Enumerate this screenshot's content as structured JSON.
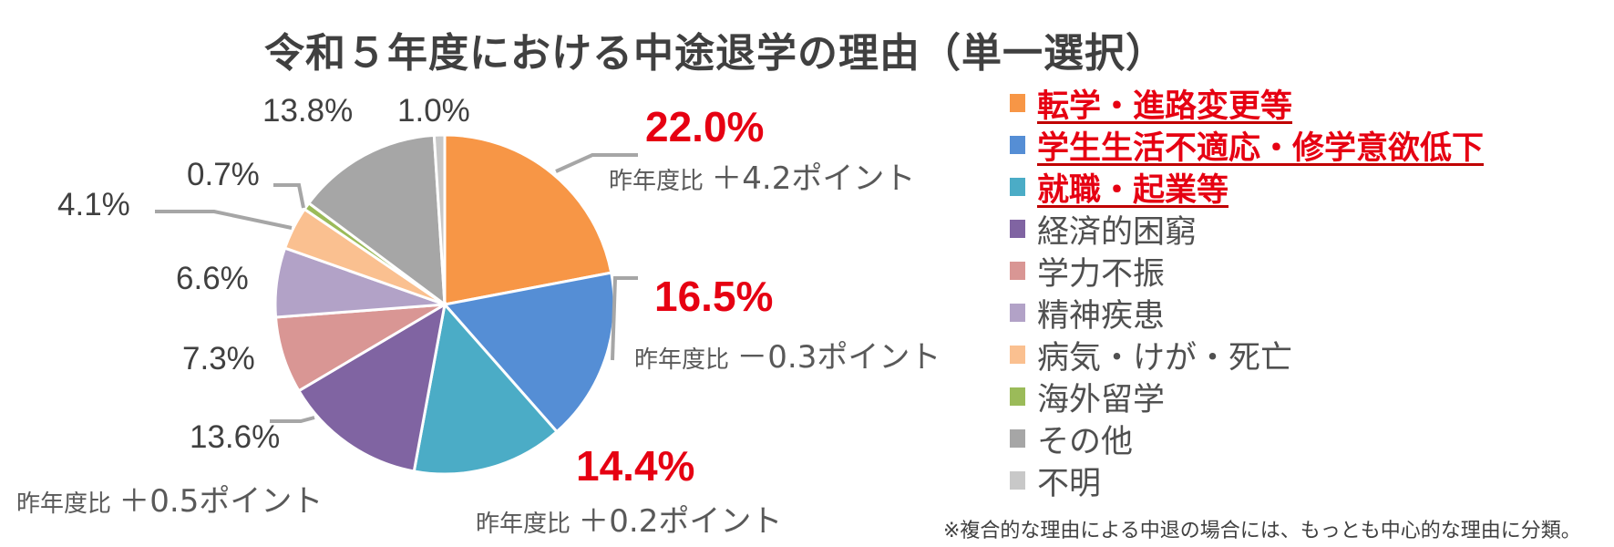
{
  "title": "令和５年度における中途退学の理由（単一選択）",
  "chart_data": {
    "type": "pie",
    "title": "令和５年度における中途退学の理由（単一選択）",
    "categories": [
      "転学・進路変更等",
      "学生生活不適応・修学意欲低下",
      "就職・起業等",
      "経済的困窮",
      "学力不振",
      "精神疾患",
      "病気・けが・死亡",
      "海外留学",
      "その他",
      "不明"
    ],
    "values": [
      22.0,
      16.5,
      14.4,
      13.6,
      7.3,
      6.6,
      4.1,
      0.7,
      13.8,
      1.0
    ],
    "colors": [
      "#f79646",
      "#558ed5",
      "#4bacc6",
      "#8064a2",
      "#d99694",
      "#b2a2c7",
      "#fac090",
      "#9bbb59",
      "#a6a6a6",
      "#c8c8c8"
    ],
    "yoy_change_points": {
      "転学・進路変更等": 4.2,
      "学生生活不適応・修学意欲低下": -0.3,
      "就職・起業等": 0.2,
      "経済的困窮": 0.5
    },
    "highlighted": [
      "転学・進路変更等",
      "学生生活不適応・修学意欲低下",
      "就職・起業等"
    ],
    "legend_position": "right",
    "start_angle_deg": 0,
    "direction": "clockwise"
  },
  "labels": {
    "s0": {
      "pct": "22.0%",
      "prefix": "昨年度比",
      "delta": "＋4.2ポイント"
    },
    "s1": {
      "pct": "16.5%",
      "prefix": "昨年度比",
      "delta": "－0.3ポイント"
    },
    "s2": {
      "pct": "14.4%",
      "prefix": "昨年度比",
      "delta": "＋0.2ポイント"
    },
    "s3": {
      "pct": "13.6%",
      "prefix": "昨年度比",
      "delta": "＋0.5ポイント"
    },
    "s4": {
      "pct": "7.3%"
    },
    "s5": {
      "pct": "6.6%"
    },
    "s6": {
      "pct": "4.1%"
    },
    "s7": {
      "pct": "0.7%"
    },
    "s8": {
      "pct": "13.8%"
    },
    "s9": {
      "pct": "1.0%"
    }
  },
  "legend": [
    {
      "label": "転学・進路変更等",
      "color": "#f79646",
      "highlight": true
    },
    {
      "label": "学生生活不適応・修学意欲低下",
      "color": "#558ed5",
      "highlight": true
    },
    {
      "label": "就職・起業等",
      "color": "#4bacc6",
      "highlight": true
    },
    {
      "label": "経済的困窮",
      "color": "#8064a2",
      "highlight": false
    },
    {
      "label": "学力不振",
      "color": "#d99694",
      "highlight": false
    },
    {
      "label": "精神疾患",
      "color": "#b2a2c7",
      "highlight": false
    },
    {
      "label": "病気・けが・死亡",
      "color": "#fac090",
      "highlight": false
    },
    {
      "label": "海外留学",
      "color": "#9bbb59",
      "highlight": false
    },
    {
      "label": "その他",
      "color": "#a6a6a6",
      "highlight": false
    },
    {
      "label": "不明",
      "color": "#c8c8c8",
      "highlight": false
    }
  ],
  "footnote": "※複合的な理由による中退の場合には、もっとも中心的な理由に分類。"
}
